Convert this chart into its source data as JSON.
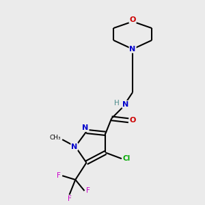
{
  "background_color": "#ebebeb",
  "atom_colors": {
    "C": "#000000",
    "N": "#0000cc",
    "O": "#cc0000",
    "Cl": "#00aa00",
    "F": "#cc00cc",
    "H": "#4a8a8a"
  },
  "figsize": [
    3.0,
    3.0
  ],
  "dpi": 100,
  "lw": 1.5
}
